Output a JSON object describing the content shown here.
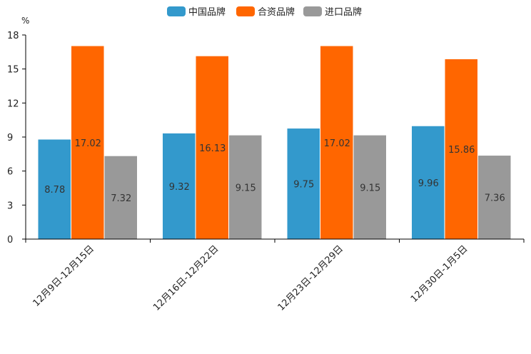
{
  "chart_data": {
    "type": "bar",
    "title": "",
    "ylabel": "%",
    "xlabel": "",
    "categories": [
      "12月9日-12月15日",
      "12月16日-12月22日",
      "12月23日-12月29日",
      "12月30日-1月5日"
    ],
    "series": [
      {
        "name": "中国品牌",
        "color": "#3399CC",
        "values": [
          8.78,
          9.32,
          9.75,
          9.96
        ]
      },
      {
        "name": "合资品牌",
        "color": "#FF6600",
        "values": [
          17.02,
          16.13,
          17.02,
          15.86
        ]
      },
      {
        "name": "进口品牌",
        "color": "#999999",
        "values": [
          7.32,
          9.15,
          9.15,
          7.36
        ]
      }
    ],
    "ylim": [
      0,
      18
    ],
    "yticks": [
      0,
      3,
      6,
      9,
      12,
      15,
      18
    ],
    "grid": false,
    "legend_position": "top-center"
  }
}
